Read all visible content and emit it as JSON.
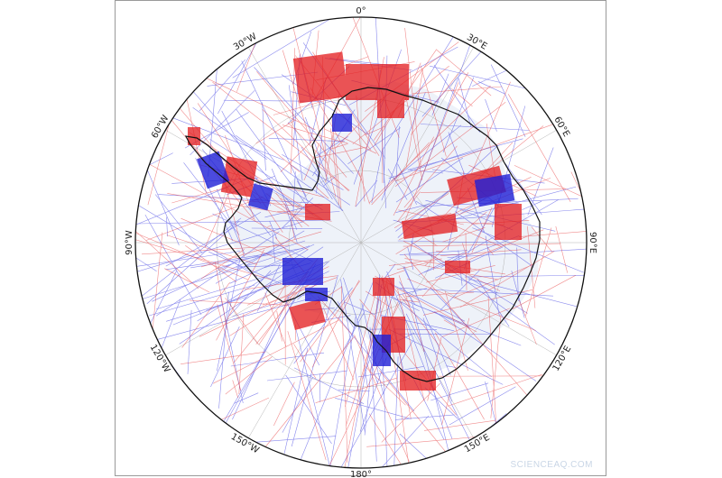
{
  "map": {
    "projection": "south polar stereographic",
    "colors": {
      "positive": "#e31a1c",
      "negative": "#1f1fd6",
      "coast": "#111111",
      "ice": "#dfe6f2",
      "graticule": "#b5b5b5"
    },
    "lon_labels": [
      {
        "text": "0°",
        "lon": 0
      },
      {
        "text": "30°E",
        "lon": 30
      },
      {
        "text": "60°E",
        "lon": 60
      },
      {
        "text": "90°E",
        "lon": 90
      },
      {
        "text": "120°E",
        "lon": 120
      },
      {
        "text": "150°E",
        "lon": 150
      },
      {
        "text": "180°",
        "lon": 180
      },
      {
        "text": "150°W",
        "lon": -150
      },
      {
        "text": "120°W",
        "lon": -120
      },
      {
        "text": "90°W",
        "lon": -90
      },
      {
        "text": "60°W",
        "lon": -60
      },
      {
        "text": "30°W",
        "lon": -30
      }
    ]
  },
  "watermark": "SCIENCEAQ.COM"
}
